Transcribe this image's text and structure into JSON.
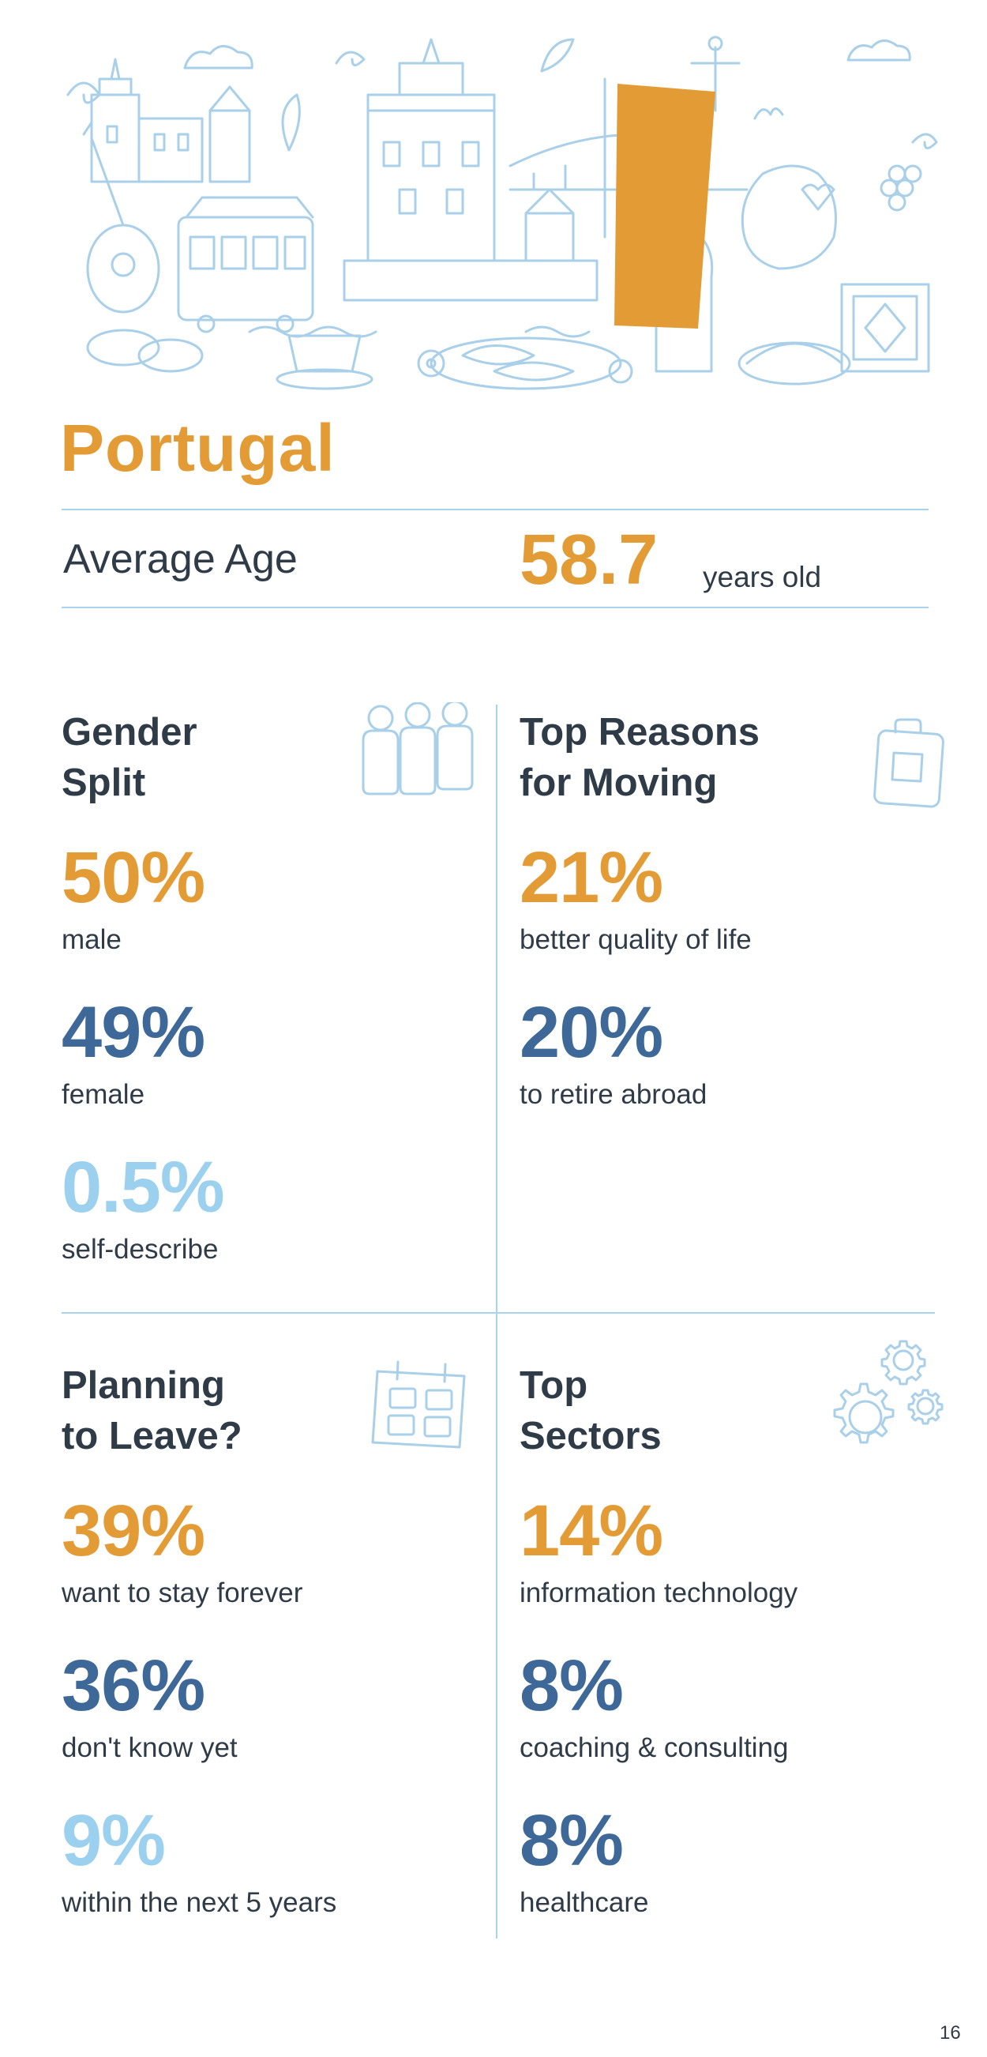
{
  "page": {
    "title": "Portugal",
    "page_number": "16"
  },
  "average_age": {
    "label": "Average Age",
    "value": "58.7",
    "unit": "years old"
  },
  "gender_split": {
    "title_line1": "Gender",
    "title_line2": "Split",
    "icon": "people-icon",
    "stats": [
      {
        "value": "50%",
        "label": "male"
      },
      {
        "value": "49%",
        "label": "female"
      },
      {
        "value": "0.5%",
        "label": "self-describe"
      }
    ]
  },
  "top_reasons": {
    "title_line1": "Top Reasons",
    "title_line2": "for Moving",
    "icon": "suitcase-icon",
    "stats": [
      {
        "value": "21%",
        "label": "better quality of life"
      },
      {
        "value": "20%",
        "label": "to retire abroad"
      }
    ]
  },
  "planning_to_leave": {
    "title_line1": "Planning",
    "title_line2": "to Leave?",
    "icon": "calendar-icon",
    "stats": [
      {
        "value": "39%",
        "label": "want to stay forever"
      },
      {
        "value": "36%",
        "label": "don't know yet"
      },
      {
        "value": "9%",
        "label": "within the next 5 years"
      }
    ]
  },
  "top_sectors": {
    "title_line1": "Top",
    "title_line2": "Sectors",
    "icon": "gears-icon",
    "stats": [
      {
        "value": "14%",
        "label": "information technology"
      },
      {
        "value": "8%",
        "label": "coaching & consulting"
      },
      {
        "value": "8%",
        "label": "healthcare"
      }
    ]
  },
  "colors": {
    "accent_orange": "#e39b35",
    "dark_blue": "#3d6897",
    "light_blue": "#9bd1ee",
    "line_blue": "#a8d3ec",
    "text": "#2f3b47"
  }
}
